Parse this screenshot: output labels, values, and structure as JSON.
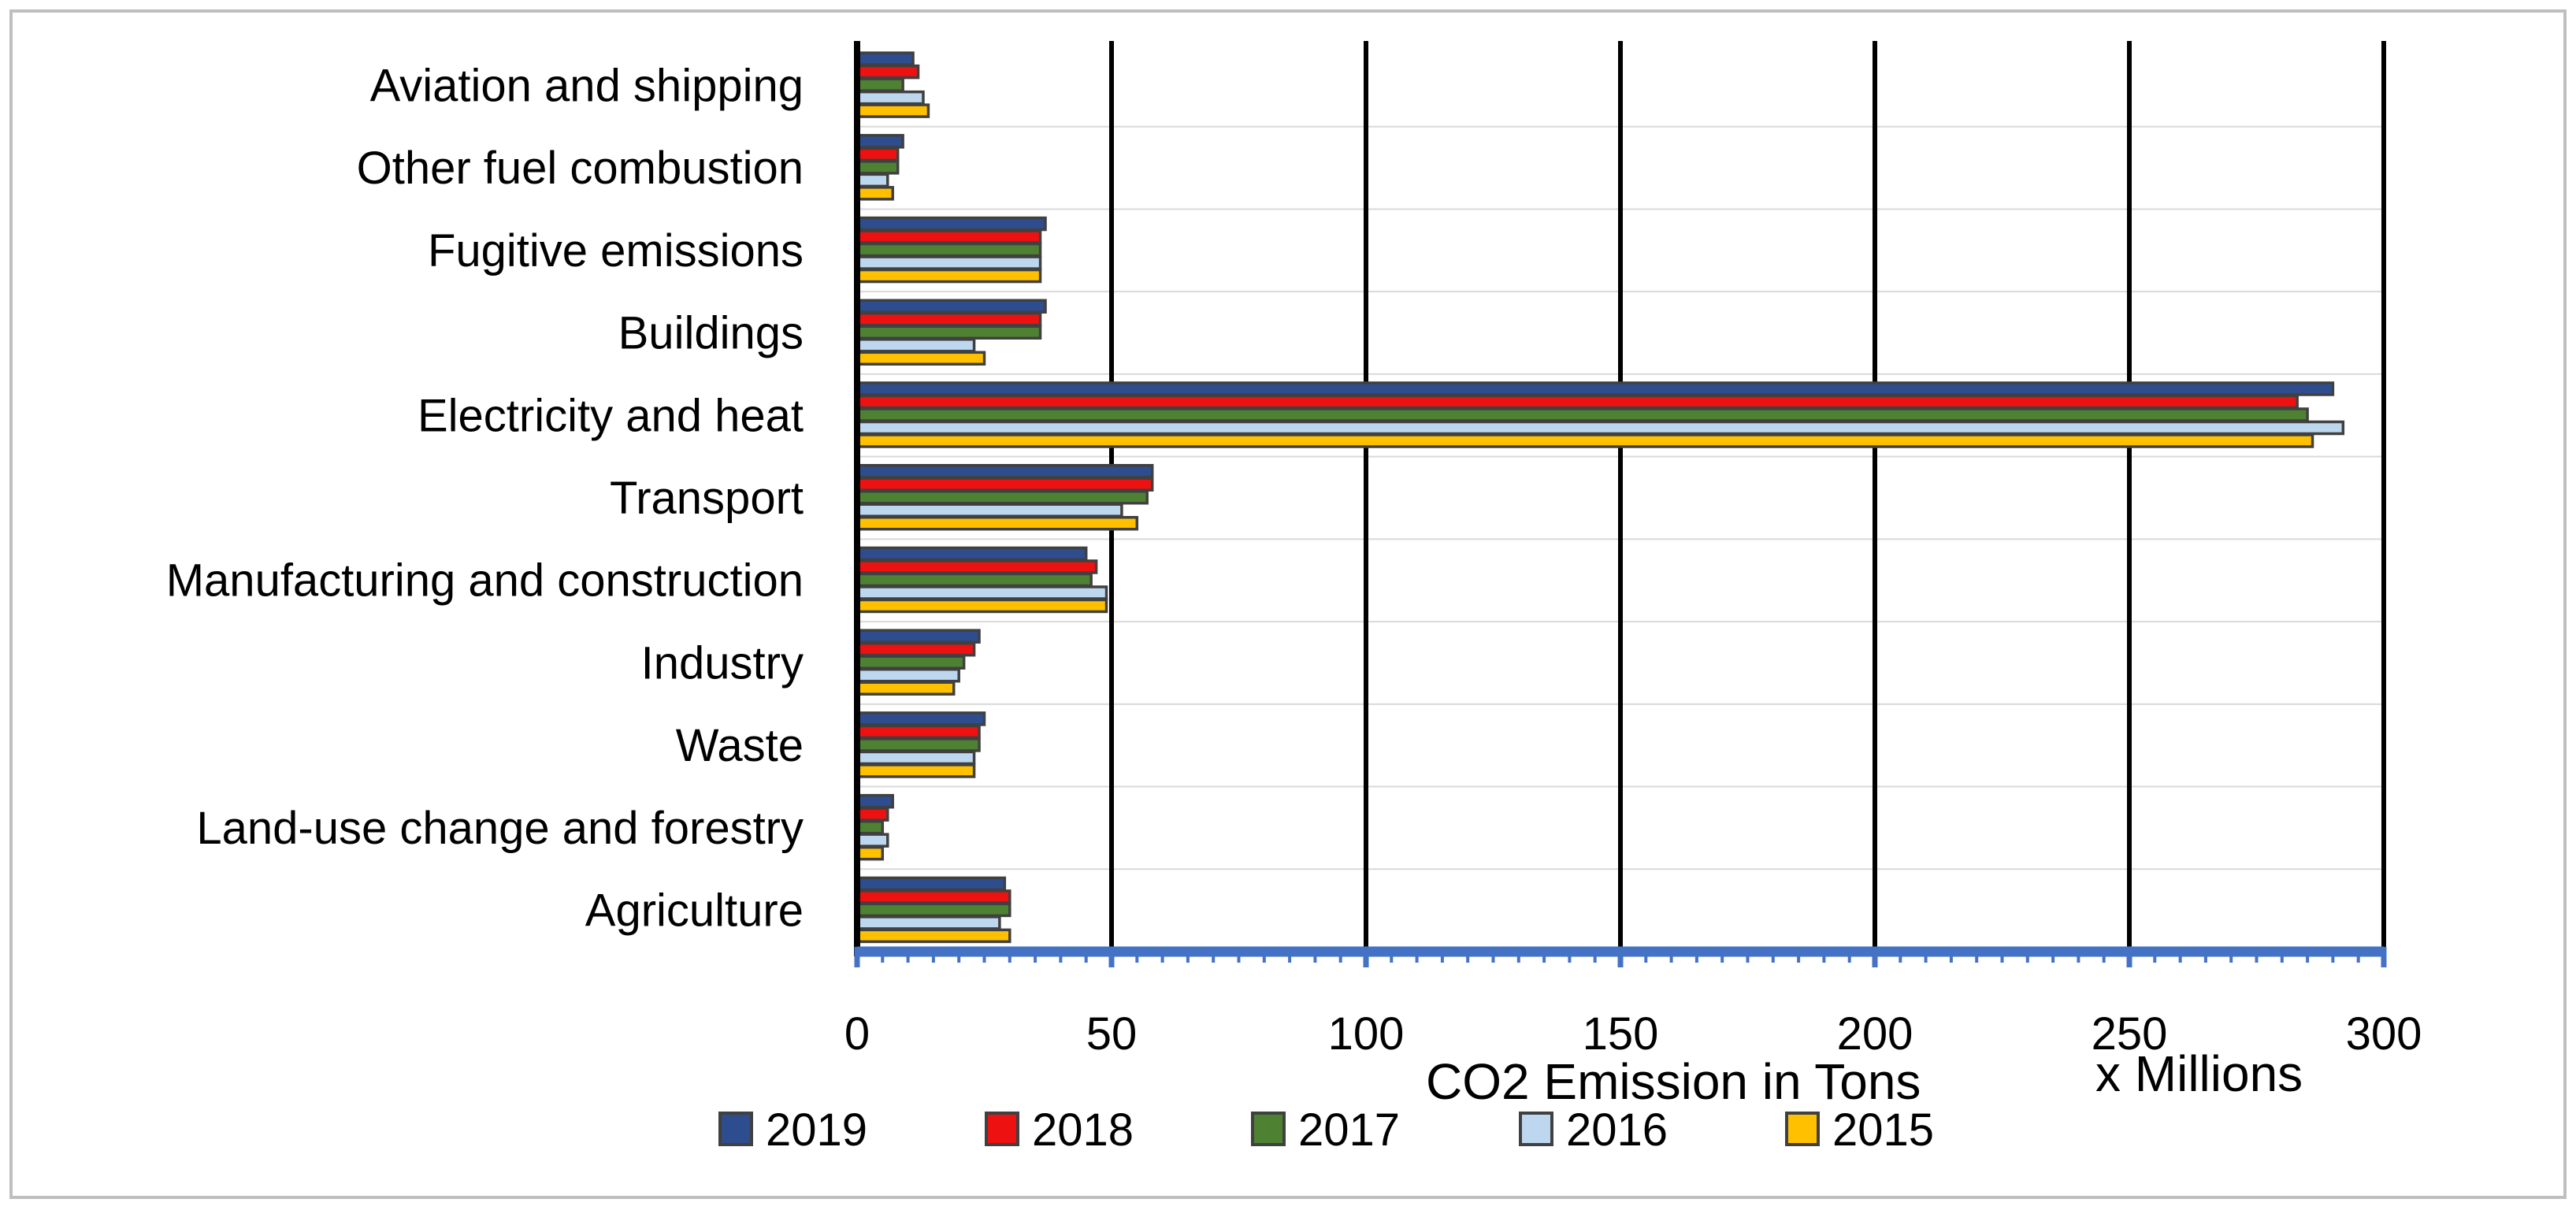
{
  "chart_data": {
    "type": "bar",
    "orientation": "horizontal",
    "categories": [
      "Aviation and shipping",
      "Other fuel combustion",
      "Fugitive emissions",
      "Buildings",
      "Electricity and heat",
      "Transport",
      "Manufacturing and construction",
      "Industry",
      "Waste",
      "Land-use change and forestry",
      "Agriculture"
    ],
    "series": [
      {
        "name": "2019",
        "color": "#2E4D8F",
        "values": [
          11,
          9,
          37,
          37,
          290,
          58,
          45,
          24,
          25,
          7,
          29
        ]
      },
      {
        "name": "2018",
        "color": "#EE1111",
        "values": [
          12,
          8,
          36,
          36,
          283,
          58,
          47,
          23,
          24,
          6,
          30
        ]
      },
      {
        "name": "2017",
        "color": "#4E8232",
        "values": [
          9,
          8,
          36,
          36,
          285,
          57,
          46,
          21,
          24,
          5,
          30
        ]
      },
      {
        "name": "2016",
        "color": "#BDD7EE",
        "values": [
          13,
          6,
          36,
          23,
          292,
          52,
          49,
          20,
          23,
          6,
          28
        ]
      },
      {
        "name": "2015",
        "color": "#FFC000",
        "values": [
          14,
          7,
          36,
          25,
          286,
          55,
          49,
          19,
          23,
          5,
          30
        ]
      }
    ],
    "xlabel": "CO2 Emission in Tons",
    "xlabel_unit": "x Millions",
    "ylabel": "",
    "xlim": [
      0,
      300
    ],
    "xticks": [
      0,
      50,
      100,
      150,
      200,
      250,
      300
    ],
    "xtick_labels": [
      "0",
      "50",
      "100",
      "150",
      "200",
      "250",
      "300"
    ],
    "grid": "vertical",
    "legend_position": "bottom"
  }
}
